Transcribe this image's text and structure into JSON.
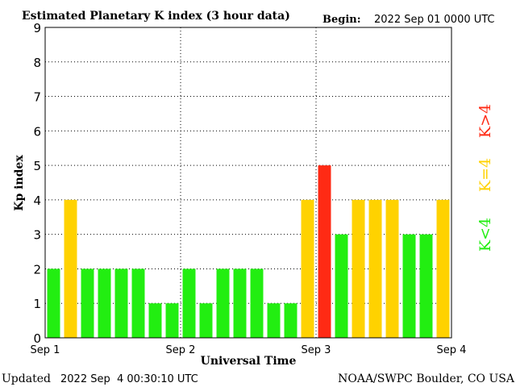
{
  "header": {
    "title": "Estimated Planetary K index (3 hour data)",
    "begin_label": "Begin:",
    "begin_value": "2022 Sep 01 0000 UTC"
  },
  "footer": {
    "updated_label": "Updated",
    "updated_value": "2022 Sep  4 00:30:10 UTC",
    "credit": "NOAA/SWPC Boulder, CO USA"
  },
  "legend": {
    "below": "K<4",
    "equal": "K=4",
    "above": "K>4"
  },
  "colors": {
    "below": "#22ee11",
    "equal": "#ffd200",
    "above": "#ff2a14",
    "grid": "#000000",
    "axis": "#000000"
  },
  "chart_data": {
    "type": "bar",
    "title": "Estimated Planetary K index (3 hour data)",
    "xlabel": "Universal Time",
    "ylabel": "Kp index",
    "ylim": [
      0,
      9
    ],
    "yticks": [
      "0",
      "1",
      "2",
      "3",
      "4",
      "5",
      "6",
      "7",
      "8",
      "9"
    ],
    "xticks": [
      "Sep 1",
      "Sep 2",
      "Sep 3",
      "Sep 4"
    ],
    "values": [
      2,
      4,
      2,
      2,
      2,
      2,
      1,
      1,
      2,
      1,
      2,
      2,
      2,
      1,
      1,
      4,
      5,
      3,
      4,
      4,
      4,
      3,
      3,
      4
    ],
    "grid": true
  }
}
